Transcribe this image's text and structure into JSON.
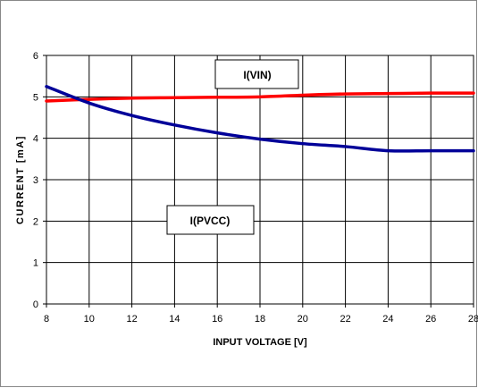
{
  "chart_data": {
    "type": "line",
    "title": "",
    "xlabel": "INPUT VOLTAGE [V]",
    "ylabel": "CURRENT [mA]",
    "xlim": [
      8,
      28
    ],
    "ylim": [
      0,
      6
    ],
    "x_ticks": [
      "8",
      "10",
      "12",
      "14",
      "16",
      "18",
      "20",
      "22",
      "24",
      "26",
      "28"
    ],
    "y_ticks": [
      "0",
      "1",
      "2",
      "3",
      "4",
      "5",
      "6"
    ],
    "grid": true,
    "series": [
      {
        "name": "I(VIN)",
        "color": "#ff0000",
        "x": [
          8,
          10,
          12,
          14,
          16,
          18,
          20,
          22,
          24,
          26,
          28
        ],
        "y": [
          4.9,
          4.94,
          4.97,
          4.98,
          4.99,
          5.0,
          5.04,
          5.07,
          5.08,
          5.09,
          5.09
        ]
      },
      {
        "name": "I(PVCC)",
        "color": "#000099",
        "x": [
          8,
          10,
          12,
          14,
          16,
          18,
          20,
          22,
          24,
          26,
          28
        ],
        "y": [
          5.25,
          4.85,
          4.55,
          4.32,
          4.13,
          3.98,
          3.87,
          3.8,
          3.7,
          3.7,
          3.7
        ]
      }
    ],
    "annotations": [
      {
        "text": "I(VIN)",
        "series": 0
      },
      {
        "text": "I(PVCC)",
        "series": 1
      }
    ]
  }
}
